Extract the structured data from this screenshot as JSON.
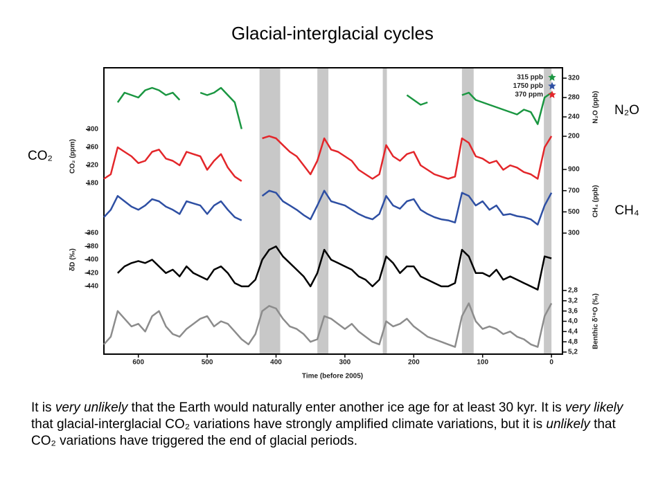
{
  "title": "Glacial-interglacial cycles",
  "side_labels": [
    "CO₂",
    "N₂O",
    "CH₄"
  ],
  "caption": [
    {
      "text": "It is "
    },
    {
      "text": "very unlikely",
      "italic": true
    },
    {
      "text": " that the Earth would naturally enter another ice age for at least 30 kyr. It is "
    },
    {
      "text": "very likely",
      "italic": true
    },
    {
      "text": " that glacial-interglacial CO₂ variations have strongly amplified climate variations, but it is "
    },
    {
      "text": "unlikely",
      "italic": true
    },
    {
      "text": " that CO₂ variations have triggered the end of glacial periods."
    }
  ],
  "chart_data": {
    "type": "line",
    "xlabel": "Time (before 2005)",
    "xlim": [
      650,
      -16
    ],
    "xticks": [
      600,
      500,
      400,
      300,
      200,
      100,
      0
    ],
    "shaded_periods": [
      [
        424,
        394
      ],
      [
        340,
        324
      ],
      [
        245,
        239
      ],
      [
        130,
        113
      ],
      [
        11,
        0
      ]
    ],
    "shade_color": "#c8c8c8",
    "legend": [
      {
        "label": "315 ppb",
        "color": "#1a9641"
      },
      {
        "label": "1750 ppb",
        "color": "#2e4fa3"
      },
      {
        "label": "370 ppm",
        "color": "#e3262a"
      }
    ],
    "x": [
      650,
      640,
      630,
      620,
      610,
      600,
      590,
      580,
      570,
      560,
      550,
      540,
      530,
      520,
      510,
      500,
      490,
      480,
      470,
      460,
      450,
      440,
      430,
      420,
      410,
      400,
      390,
      380,
      370,
      360,
      350,
      340,
      330,
      320,
      310,
      300,
      290,
      280,
      270,
      260,
      250,
      240,
      230,
      220,
      210,
      200,
      190,
      180,
      170,
      160,
      150,
      140,
      130,
      120,
      110,
      100,
      90,
      80,
      70,
      60,
      50,
      40,
      30,
      20,
      10,
      0
    ],
    "series": [
      {
        "axis_label": "N₂O (ppb)",
        "side": "right",
        "color": "#1a9641",
        "ylim": [
          200,
          320
        ],
        "yticks": [
          200,
          240,
          280,
          320
        ],
        "values": [
          null,
          null,
          270,
          290,
          285,
          280,
          295,
          300,
          295,
          285,
          290,
          275,
          null,
          null,
          290,
          285,
          290,
          300,
          285,
          270,
          215,
          null,
          null,
          null,
          null,
          null,
          null,
          null,
          null,
          null,
          null,
          null,
          null,
          null,
          null,
          null,
          null,
          null,
          null,
          null,
          null,
          null,
          null,
          null,
          285,
          275,
          265,
          270,
          null,
          null,
          null,
          null,
          285,
          290,
          275,
          270,
          265,
          260,
          255,
          250,
          245,
          255,
          250,
          225,
          280,
          290
        ]
      },
      {
        "axis_label": "CO₂ (ppm)",
        "side": "left",
        "color": "#e3262a",
        "ylim": [
          180,
          300
        ],
        "yticks": [
          180,
          220,
          260,
          300
        ],
        "values": [
          190,
          200,
          260,
          250,
          240,
          225,
          230,
          250,
          255,
          235,
          230,
          220,
          250,
          245,
          240,
          210,
          230,
          245,
          215,
          195,
          185,
          null,
          null,
          280,
          285,
          280,
          265,
          250,
          240,
          220,
          200,
          230,
          280,
          255,
          250,
          240,
          230,
          210,
          200,
          190,
          200,
          265,
          240,
          230,
          245,
          250,
          220,
          210,
          200,
          195,
          190,
          195,
          280,
          270,
          240,
          235,
          225,
          230,
          210,
          220,
          215,
          205,
          200,
          190,
          260,
          285
        ]
      },
      {
        "axis_label": "CH₄ (ppb)",
        "side": "right",
        "color": "#2e4fa3",
        "ylim": [
          300,
          900
        ],
        "yticks": [
          300,
          500,
          700,
          900
        ],
        "values": [
          450,
          520,
          650,
          600,
          550,
          520,
          560,
          620,
          600,
          550,
          520,
          480,
          600,
          580,
          560,
          480,
          560,
          600,
          520,
          450,
          420,
          null,
          null,
          650,
          700,
          680,
          600,
          560,
          520,
          470,
          430,
          560,
          700,
          600,
          580,
          560,
          520,
          480,
          450,
          430,
          480,
          650,
          560,
          530,
          600,
          620,
          520,
          480,
          450,
          430,
          420,
          400,
          680,
          650,
          560,
          600,
          520,
          560,
          470,
          480,
          460,
          450,
          430,
          380,
          560,
          680
        ]
      },
      {
        "axis_label": "δD (‰)",
        "side": "left",
        "color": "#000000",
        "ylim": [
          -440,
          -360
        ],
        "yticks": [
          -360,
          -380,
          -400,
          -420,
          -440
        ],
        "values": [
          null,
          null,
          -420,
          -410,
          -405,
          -402,
          -405,
          -400,
          -410,
          -420,
          -415,
          -425,
          -410,
          -420,
          -425,
          -430,
          -415,
          -410,
          -420,
          -435,
          -440,
          -440,
          -430,
          -400,
          -385,
          -380,
          -395,
          -405,
          -415,
          -425,
          -440,
          -420,
          -385,
          -400,
          -405,
          -410,
          -415,
          -425,
          -430,
          -440,
          -430,
          -395,
          -405,
          -420,
          -410,
          -410,
          -425,
          -430,
          -435,
          -440,
          -440,
          -435,
          -385,
          -395,
          -420,
          -420,
          -425,
          -415,
          -430,
          -425,
          -430,
          -435,
          -440,
          -445,
          -395,
          -398
        ]
      },
      {
        "axis_label": "Benthic δ¹⁸O (‰)",
        "side": "right",
        "color": "#8c8c8c",
        "ylim": [
          5.2,
          2.8
        ],
        "yticks": [
          {
            "value": 2.8,
            "label": "2,8"
          },
          {
            "value": 3.2,
            "label": "3,2"
          },
          {
            "value": 3.6,
            "label": "3,6"
          },
          {
            "value": 4.0,
            "label": "4,0"
          },
          {
            "value": 4.4,
            "label": "4,4"
          },
          {
            "value": 4.8,
            "label": "4,8"
          },
          {
            "value": 5.2,
            "label": "5,2"
          }
        ],
        "values": [
          4.9,
          4.6,
          3.6,
          3.9,
          4.2,
          4.1,
          4.4,
          3.8,
          3.6,
          4.2,
          4.5,
          4.6,
          4.3,
          4.1,
          3.9,
          3.8,
          4.2,
          4.0,
          4.1,
          4.4,
          4.7,
          4.9,
          4.5,
          3.6,
          3.4,
          3.5,
          3.9,
          4.2,
          4.3,
          4.5,
          4.8,
          4.7,
          3.8,
          3.9,
          4.1,
          4.3,
          4.1,
          4.4,
          4.6,
          4.8,
          4.9,
          4.0,
          4.2,
          4.1,
          3.9,
          4.2,
          4.4,
          4.6,
          4.7,
          4.8,
          4.9,
          5.0,
          3.8,
          3.3,
          4.0,
          4.3,
          4.2,
          4.3,
          4.5,
          4.4,
          4.6,
          4.7,
          4.9,
          5.0,
          3.8,
          3.3
        ]
      }
    ]
  }
}
